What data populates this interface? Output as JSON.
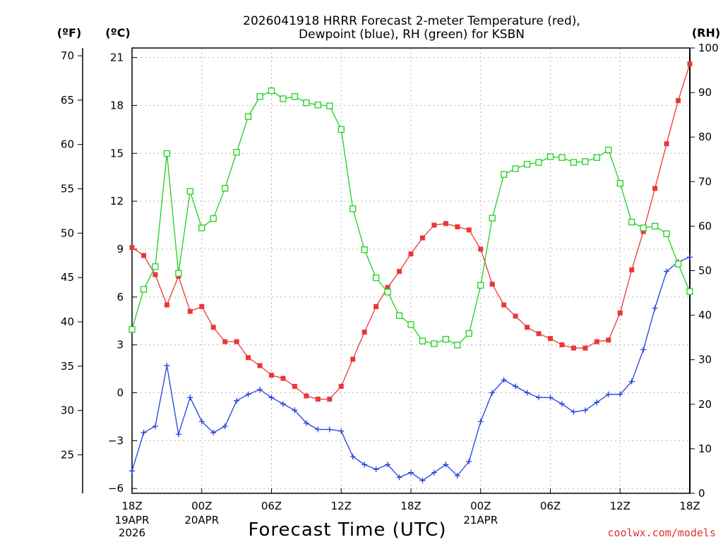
{
  "chart_data": {
    "type": "line",
    "title_lines": [
      "2026041918 HRRR Forecast 2-meter Temperature (red),",
      "Dewpoint (blue), RH (green) for KSBN"
    ],
    "left_outer_axis_label": "(ºF)",
    "left_inner_axis_label": "(ºC)",
    "right_axis_label": "(RH)",
    "xlabel": "Forecast Time (UTC)",
    "credit": "coolwx.com/models",
    "x_range_hours": [
      0,
      48
    ],
    "y_celsius_range": [
      -6.3,
      21.6
    ],
    "rh_range": [
      0,
      100
    ],
    "fahrenheit_ticks": [
      "70",
      "65",
      "60",
      "55",
      "50",
      "45",
      "40",
      "35",
      "30",
      "25"
    ],
    "celsius_ticks": [
      "21",
      "18",
      "15",
      "12",
      "9",
      "6",
      "3",
      "0",
      "−3",
      "−6"
    ],
    "rh_ticks": [
      "100",
      "90",
      "80",
      "70",
      "60",
      "50",
      "40",
      "30",
      "20",
      "10",
      "0"
    ],
    "x_ticks": [
      {
        "hour": 0,
        "label": "18Z",
        "sub": [
          "19APR",
          "2026"
        ]
      },
      {
        "hour": 6,
        "label": "00Z",
        "sub": [
          "20APR"
        ]
      },
      {
        "hour": 12,
        "label": "06Z",
        "sub": []
      },
      {
        "hour": 18,
        "label": "12Z",
        "sub": []
      },
      {
        "hour": 24,
        "label": "18Z",
        "sub": []
      },
      {
        "hour": 30,
        "label": "00Z",
        "sub": [
          "21APR"
        ]
      },
      {
        "hour": 36,
        "label": "06Z",
        "sub": []
      },
      {
        "hour": 42,
        "label": "12Z",
        "sub": []
      },
      {
        "hour": 48,
        "label": "18Z",
        "sub": []
      }
    ],
    "grid": true,
    "series": [
      {
        "name": "2-meter Temperature",
        "units": "C",
        "color": "#e83838",
        "marker": "filled-square",
        "values": [
          9.1,
          8.6,
          7.4,
          5.5,
          7.3,
          5.1,
          5.4,
          4.1,
          3.2,
          3.2,
          2.2,
          1.7,
          1.1,
          0.9,
          0.4,
          -0.2,
          -0.4,
          -0.4,
          0.4,
          2.1,
          3.8,
          5.4,
          6.6,
          7.6,
          8.7,
          9.7,
          10.5,
          10.6,
          10.4,
          10.2,
          9.0,
          6.8,
          5.5,
          4.8,
          4.1,
          3.7,
          3.4,
          3.0,
          2.8,
          2.8,
          3.2,
          3.3,
          5.0,
          7.7,
          10.1,
          12.8,
          15.6,
          18.3,
          20.6
        ]
      },
      {
        "name": "Dewpoint",
        "units": "C",
        "color": "#2040e0",
        "marker": "plus",
        "values": [
          -4.9,
          -2.5,
          -2.1,
          1.7,
          -2.6,
          -0.3,
          -1.8,
          -2.5,
          -2.1,
          -0.5,
          -0.1,
          0.2,
          -0.3,
          -0.7,
          -1.1,
          -1.9,
          -2.3,
          -2.3,
          -2.4,
          -4.0,
          -4.5,
          -4.8,
          -4.5,
          -5.3,
          -5.0,
          -5.5,
          -5.0,
          -4.5,
          -5.2,
          -4.3,
          -1.8,
          0.0,
          0.8,
          0.4,
          0.0,
          -0.3,
          -0.3,
          -0.7,
          -1.2,
          -1.1,
          -0.6,
          -0.1,
          -0.1,
          0.7,
          2.7,
          5.3,
          7.6,
          8.2,
          8.5
        ]
      },
      {
        "name": "RH",
        "units": "%",
        "color": "#20d020",
        "marker": "open-square",
        "values": [
          36.8,
          45.8,
          50.9,
          76.3,
          49.4,
          67.8,
          59.6,
          61.7,
          68.5,
          76.6,
          84.6,
          89.1,
          90.4,
          88.6,
          89.1,
          87.7,
          87.2,
          87.0,
          81.7,
          63.9,
          54.7,
          48.4,
          45.2,
          39.9,
          37.9,
          34.2,
          33.6,
          34.6,
          33.3,
          35.9,
          46.7,
          61.8,
          71.6,
          72.9,
          73.9,
          74.3,
          75.6,
          75.4,
          74.3,
          74.5,
          75.4,
          77.1,
          69.6,
          60.9,
          59.6,
          60.0,
          58.3,
          51.5,
          45.3
        ]
      }
    ]
  }
}
